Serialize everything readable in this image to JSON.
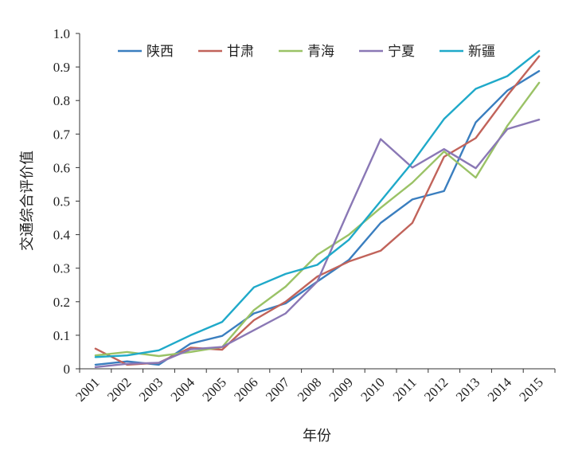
{
  "chart_data": {
    "type": "line",
    "title": "",
    "xlabel": "年份",
    "ylabel": "交通综合评价值",
    "categories": [
      "2001",
      "2002",
      "2003",
      "2004",
      "2005",
      "2006",
      "2007",
      "2008",
      "2009",
      "2010",
      "2011",
      "2012",
      "2013",
      "2014",
      "2015"
    ],
    "ylim": [
      0,
      1.0
    ],
    "yticks": [
      "0",
      "0.1",
      "0.2",
      "0.3",
      "0.4",
      "0.5",
      "0.6",
      "0.7",
      "0.8",
      "0.9",
      "1.0"
    ],
    "grid": false,
    "legend_position": "top",
    "series": [
      {
        "name": "陕西",
        "color": "#3a7ebf",
        "values": [
          0.012,
          0.022,
          0.012,
          0.075,
          0.098,
          0.165,
          0.195,
          0.26,
          0.325,
          0.435,
          0.505,
          0.53,
          0.735,
          0.83,
          0.888
        ]
      },
      {
        "name": "甘肃",
        "color": "#c1635a",
        "values": [
          0.06,
          0.012,
          0.018,
          0.063,
          0.057,
          0.145,
          0.2,
          0.275,
          0.32,
          0.352,
          0.435,
          0.632,
          0.688,
          0.815,
          0.932
        ]
      },
      {
        "name": "青海",
        "color": "#9ac266",
        "values": [
          0.04,
          0.05,
          0.038,
          0.05,
          0.065,
          0.175,
          0.245,
          0.34,
          0.4,
          0.48,
          0.555,
          0.648,
          0.57,
          0.725,
          0.853
        ]
      },
      {
        "name": "宁夏",
        "color": "#8a78b5",
        "values": [
          0.005,
          0.015,
          0.018,
          0.058,
          0.065,
          0.115,
          0.165,
          0.26,
          0.475,
          0.685,
          0.6,
          0.655,
          0.598,
          0.715,
          0.743
        ]
      },
      {
        "name": "新疆",
        "color": "#1fa9c9",
        "values": [
          0.035,
          0.04,
          0.055,
          0.1,
          0.14,
          0.243,
          0.283,
          0.31,
          0.385,
          0.5,
          0.615,
          0.745,
          0.835,
          0.873,
          0.948
        ]
      }
    ]
  }
}
